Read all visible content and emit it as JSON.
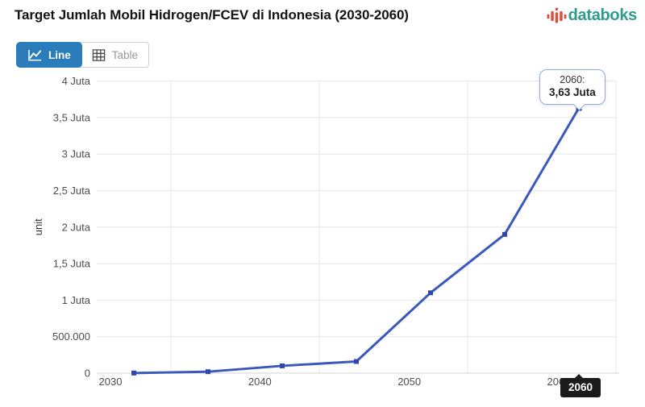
{
  "header": {
    "title": "Target Jumlah Mobil Hidrogen/FCEV di Indonesia (2030-2060)",
    "brand": {
      "name": "databoks"
    }
  },
  "toolbar": {
    "line_label": "Line",
    "table_label": "Table",
    "active_view": "Line"
  },
  "colors": {
    "accent_blue": "#2B7CBB",
    "series_line": "#3B59BD",
    "series_marker": "#2F47A8",
    "brand_teal": "#2E9B8E",
    "brand_red": "#D9503E",
    "grid": "#E7E7E7",
    "axis_line": "#D4D4D4",
    "hover_label_bg": "#1B1B1B"
  },
  "chart_data": {
    "type": "line",
    "title": "Target Jumlah Mobil Hidrogen/FCEV di Indonesia (2030-2060)",
    "xlabel": "",
    "ylabel": "unit",
    "x": [
      2031,
      2036,
      2041,
      2046,
      2051,
      2056,
      2060
    ],
    "values": [
      2000,
      20000,
      100000,
      160000,
      1100000,
      1900000,
      3630000
    ],
    "ylim": [
      0,
      4000000
    ],
    "grid": true,
    "legend_position": "none",
    "yticks": [
      {
        "value": 0,
        "label": "0"
      },
      {
        "value": 500000,
        "label": "500.000"
      },
      {
        "value": 1000000,
        "label": "1 Juta"
      },
      {
        "value": 1500000,
        "label": "1,5 Juta"
      },
      {
        "value": 2000000,
        "label": "2 Juta"
      },
      {
        "value": 2500000,
        "label": "2,5 Juta"
      },
      {
        "value": 3000000,
        "label": "3 Juta"
      },
      {
        "value": 3500000,
        "label": "3,5 Juta"
      },
      {
        "value": 4000000,
        "label": "4 Juta"
      }
    ],
    "xticks": [
      {
        "year": 2030,
        "label": "2030"
      },
      {
        "year": 2040,
        "label": "2040"
      },
      {
        "year": 2050,
        "label": "2050"
      },
      {
        "year": 2060,
        "label": "2060"
      }
    ],
    "hover": {
      "year_line": "2060:",
      "value_line": "3,63 Juta",
      "axis_label": "2060",
      "point_index": 6
    }
  }
}
